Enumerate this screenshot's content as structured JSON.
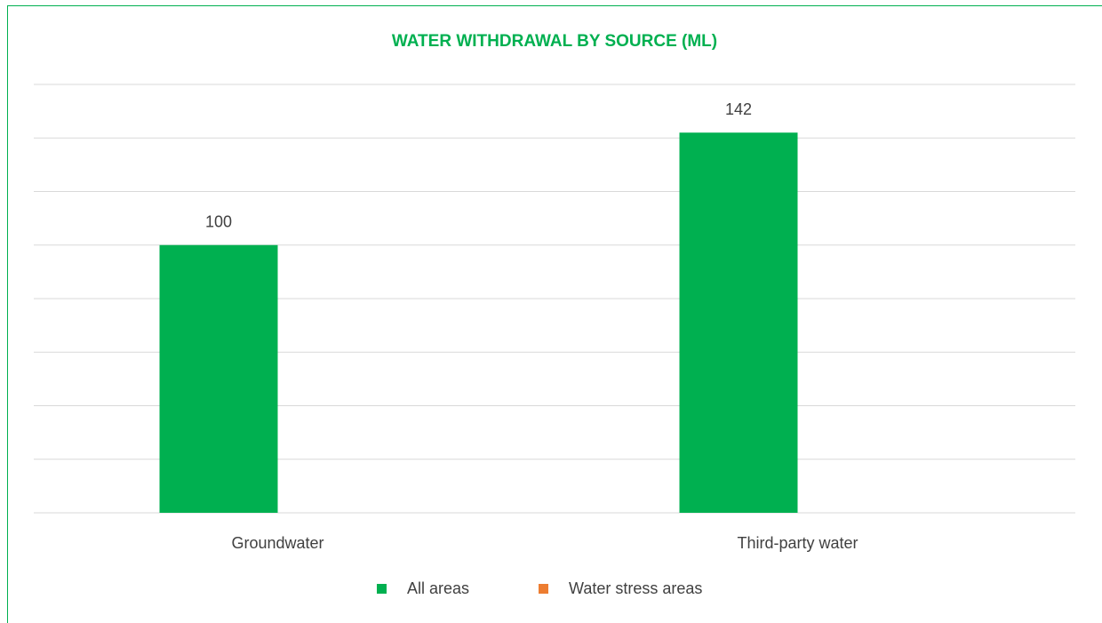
{
  "chart_data": {
    "type": "bar",
    "title": "WATER WITHDRAWAL BY SOURCE (ML)",
    "categories": [
      "Groundwater",
      "Third-party water"
    ],
    "series": [
      {
        "name": "All areas",
        "color": "#00b050",
        "values": [
          100,
          142
        ]
      },
      {
        "name": "Water stress areas",
        "color": "#ed7d31",
        "values": [
          null,
          null
        ]
      }
    ],
    "ylim": [
      0,
      160
    ],
    "yticks": [
      0,
      20,
      40,
      60,
      80,
      100,
      120,
      140,
      160
    ],
    "grid": true,
    "legend": "bottom"
  }
}
